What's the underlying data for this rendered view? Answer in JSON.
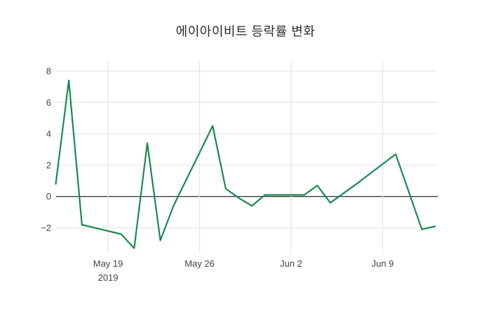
{
  "page": {
    "background": "#ffffff"
  },
  "header": {
    "title": "에이아이비트 등락률 변화"
  },
  "chart_data": {
    "type": "line",
    "title": "에이아이비트 등락률 변화",
    "series_name": "등락률",
    "line_color": "#1a8a50",
    "grid_color": "#e8e8e8",
    "zero_line_color": "#3d3d3d",
    "tick_color": "#444444",
    "x_dates": [
      "May 15",
      "May 16",
      "May 17",
      "May 20",
      "May 21",
      "May 22",
      "May 23",
      "May 24",
      "May 27",
      "May 28",
      "May 29",
      "May 30",
      "May 31",
      "Jun 3",
      "Jun 4",
      "Jun 5",
      "Jun 6",
      "Jun 7",
      "Jun 10",
      "Jun 11",
      "Jun 12",
      "Jun 13"
    ],
    "day_offsets": [
      0,
      1,
      2,
      5,
      6,
      7,
      8,
      9,
      12,
      13,
      14,
      15,
      16,
      19,
      20,
      21,
      22,
      23,
      26,
      27,
      28,
      29
    ],
    "values": [
      0.8,
      7.4,
      -1.8,
      -2.4,
      -3.3,
      3.4,
      -2.8,
      -0.6,
      4.5,
      0.5,
      -0.1,
      -0.6,
      0.1,
      0.1,
      0.7,
      -0.4,
      0.2,
      0.8,
      2.7,
      0.3,
      -2.1,
      -1.9
    ],
    "year": "2019",
    "ylim": [
      -3.8,
      8.6
    ],
    "yticks": [
      {
        "v": -2,
        "label": "−2"
      },
      {
        "v": 0,
        "label": "0"
      },
      {
        "v": 2,
        "label": "2"
      },
      {
        "v": 4,
        "label": "4"
      },
      {
        "v": 6,
        "label": "6"
      },
      {
        "v": 8,
        "label": "8"
      }
    ],
    "xticks": [
      {
        "day": 4,
        "label": "May 19",
        "sublabel": "2019"
      },
      {
        "day": 11,
        "label": "May 26"
      },
      {
        "day": 18,
        "label": "Jun 2"
      },
      {
        "day": 25,
        "label": "Jun 9"
      }
    ],
    "grid": true,
    "zero_line": true,
    "legend_position": "none"
  }
}
